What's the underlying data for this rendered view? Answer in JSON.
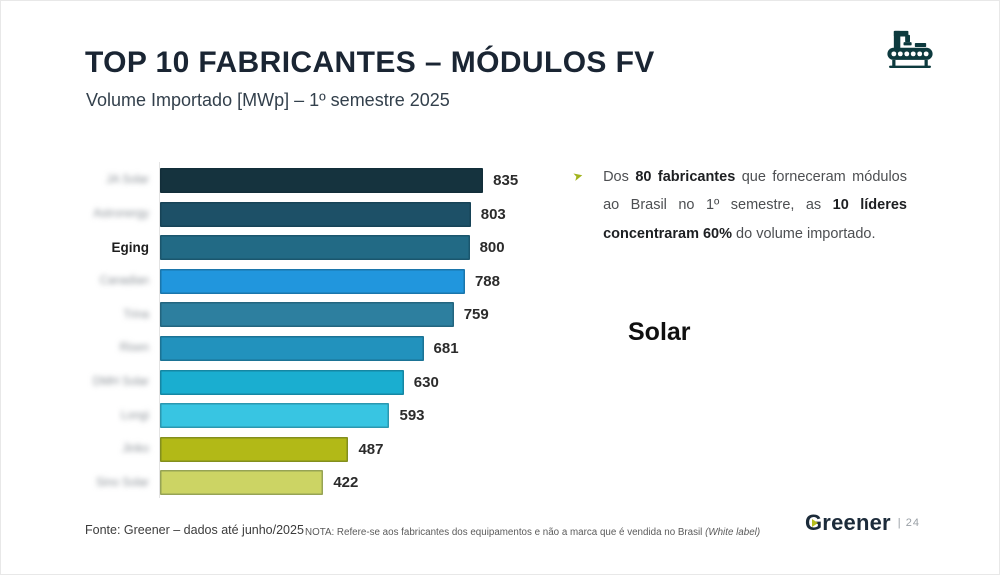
{
  "slide": {
    "title": "TOP 10 FABRICANTES – MÓDULOS FV",
    "subtitle": "Volume Importado [MWp] – 1º semestre 2025",
    "corner_icon": "factory-conveyor-icon",
    "corner_icon_color": "#0d3a3e"
  },
  "chart_data": {
    "type": "bar",
    "orientation": "horizontal",
    "title": "TOP 10 FABRICANTES – MÓDULOS FV",
    "subtitle": "Volume Importado [MWp] – 1º semestre 2025",
    "unit": "MWp",
    "xlim": [
      0,
      900
    ],
    "grid": false,
    "legend": false,
    "value_labels": "end-of-bar",
    "categories": [
      "JA Solar",
      "Astronergy",
      "Eging",
      "Canadian",
      "Trina",
      "Risen",
      "DMH Solar",
      "Longi",
      "Jinko",
      "Sino Solar"
    ],
    "categories_blurred": [
      true,
      true,
      false,
      true,
      true,
      true,
      true,
      true,
      true,
      true
    ],
    "values": [
      835,
      803,
      800,
      788,
      759,
      681,
      630,
      593,
      487,
      422
    ],
    "bar_colors": [
      "#15333e",
      "#1d5067",
      "#226a85",
      "#2196dd",
      "#2d7f9f",
      "#2292bd",
      "#1aaed0",
      "#38c5e2",
      "#b2b917",
      "#ccd464"
    ]
  },
  "annotation": {
    "bullet_icon": "arrow-bullet-icon",
    "bullet_glyph": "➤",
    "bullet_color": "#a2b41d",
    "segments": [
      {
        "text": "Dos ",
        "bold": false
      },
      {
        "text": "80 fabricantes",
        "bold": true
      },
      {
        "text": " que forneceram módulos ao Brasil no 1º semestre, as ",
        "bold": false
      },
      {
        "text": "10 líderes concentraram 60%",
        "bold": true
      },
      {
        "text": " do volume importado.",
        "bold": false
      }
    ],
    "overlay_text": "Solar"
  },
  "footer": {
    "source": "Fonte: Greener – dados até junho/2025",
    "note": "NOTA: Refere-se aos fabricantes dos equipamentos e não a marca que é vendida no Brasil ",
    "note_italic": "(White label)",
    "brand": "Greener",
    "page_number": "24"
  }
}
